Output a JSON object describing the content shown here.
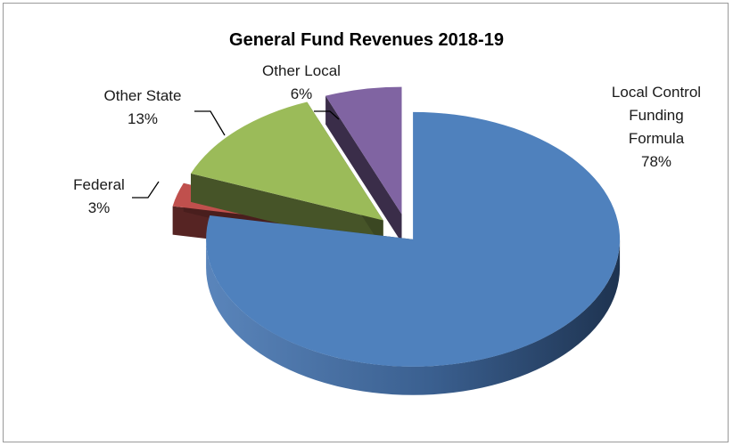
{
  "chart_data": {
    "type": "pie",
    "style": "3d-exploded",
    "title": "General Fund Revenues 2018-19",
    "legend": "none",
    "slices": [
      {
        "label_lines": [
          "Local Control",
          "Funding",
          "Formula"
        ],
        "percent_label": "78%",
        "value": 78,
        "color": "#4f81bd"
      },
      {
        "label_lines": [
          "Federal"
        ],
        "percent_label": "3%",
        "value": 3,
        "color": "#c0504d"
      },
      {
        "label_lines": [
          "Other State"
        ],
        "percent_label": "13%",
        "value": 13,
        "color": "#9bbb59"
      },
      {
        "label_lines": [
          "Other Local"
        ],
        "percent_label": "6%",
        "value": 6,
        "color": "#8064a2"
      }
    ]
  }
}
